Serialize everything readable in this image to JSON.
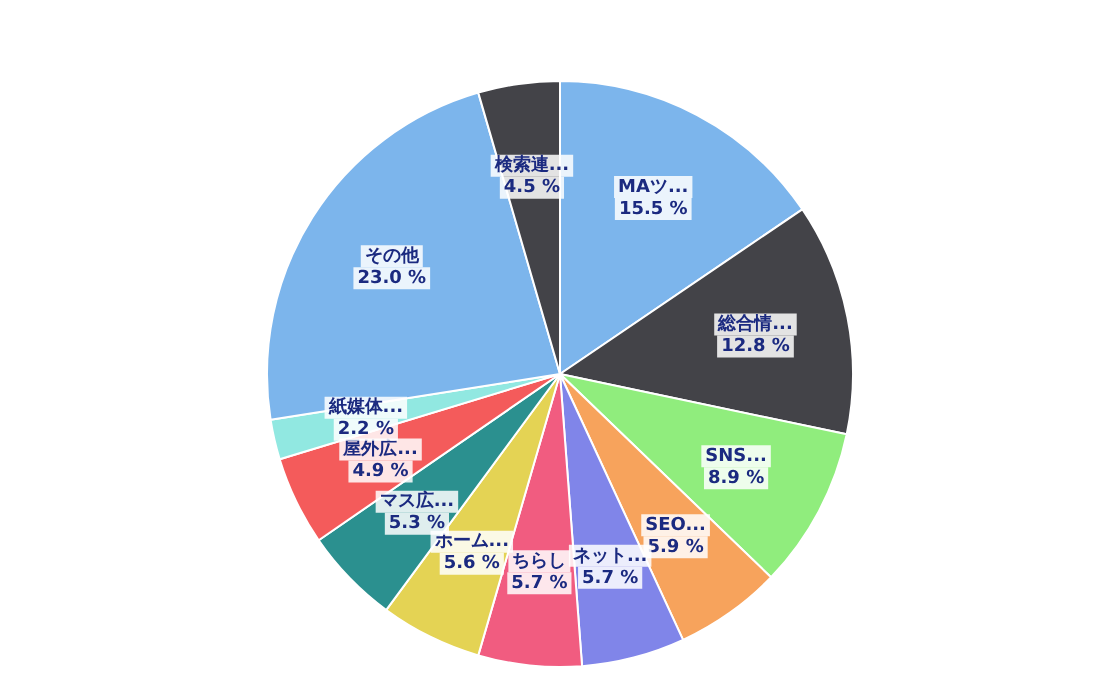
{
  "chart_data": {
    "type": "pie",
    "categories": [
      "MAツ...",
      "総合情...",
      "SNS...",
      "SEO...",
      "ネット...",
      "ちらし",
      "ホーム...",
      "マス広...",
      "屋外広...",
      "紙媒体...",
      "その他",
      "検索連..."
    ],
    "values": [
      15.5,
      12.8,
      8.9,
      5.9,
      5.7,
      5.7,
      5.6,
      5.3,
      4.9,
      2.2,
      23.0,
      4.5
    ],
    "value_labels": [
      "15.5 %",
      "12.8 %",
      "8.9 %",
      "5.9 %",
      "5.7 %",
      "5.7 %",
      "5.6 %",
      "5.3 %",
      "4.9 %",
      "2.2 %",
      "23.0 %",
      "4.5 %"
    ],
    "colors": [
      "#7cb5ec",
      "#434348",
      "#90ed7d",
      "#f7a35c",
      "#8085e9",
      "#f15c80",
      "#e4d354",
      "#2b908f",
      "#f45b5b",
      "#91e8e1",
      "#7cb5ec",
      "#434348"
    ],
    "legend": false
  }
}
